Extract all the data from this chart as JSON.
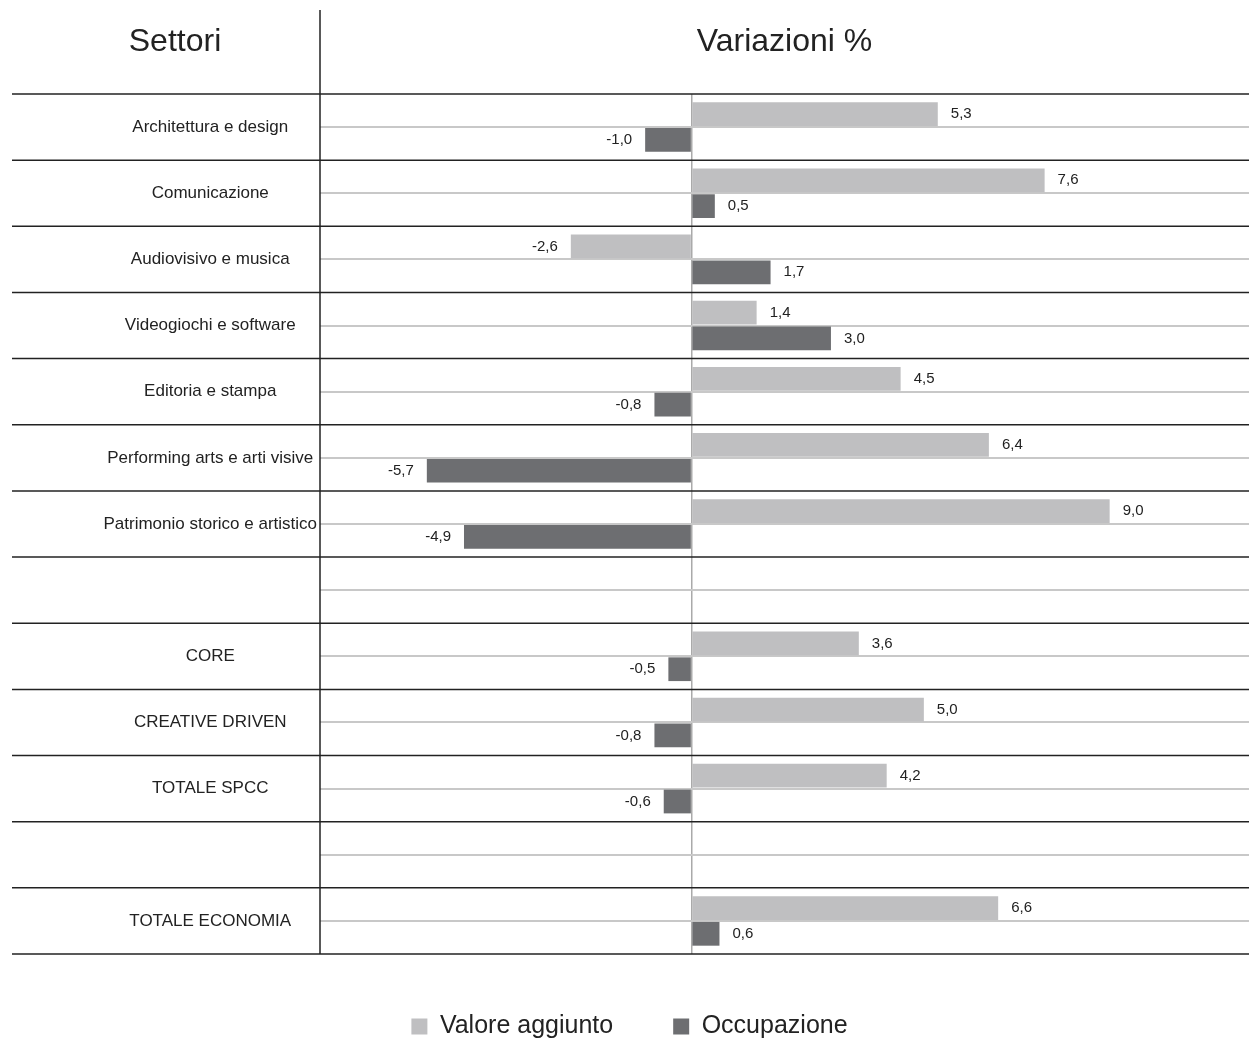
{
  "chart_data": {
    "type": "bar",
    "orientation": "horizontal",
    "title": "Variazioni %",
    "ylabel": "Settori",
    "categories": [
      "Architettura e design",
      "Comunicazione",
      "Audiovisivo e musica",
      "Videogiochi e software",
      "Editoria e stampa",
      "Performing arts e arti visive",
      "Patrimonio storico e artistico",
      null,
      "CORE",
      "CREATIVE DRIVEN",
      "TOTALE SPCC",
      null,
      "TOTALE ECONOMIA"
    ],
    "series": [
      {
        "name": "Valore aggiunto",
        "color": "#bfbfc1",
        "values": [
          5.3,
          7.6,
          -2.6,
          1.4,
          4.5,
          6.4,
          9.0,
          null,
          3.6,
          5.0,
          4.2,
          null,
          6.6
        ],
        "value_labels": [
          "5,3",
          "7,6",
          "-2,6",
          "1,4",
          "4,5",
          "6,4",
          "9,0",
          null,
          "3,6",
          "5,0",
          "4,2",
          null,
          "6,6"
        ]
      },
      {
        "name": "Occupazione",
        "color": "#6d6e71",
        "values": [
          -1.0,
          0.5,
          1.7,
          3.0,
          -0.8,
          -5.7,
          -4.9,
          null,
          -0.5,
          -0.8,
          -0.6,
          null,
          0.6
        ],
        "value_labels": [
          "-1,0",
          "0,5",
          "1,7",
          "3,0",
          "-0,8",
          "-5,7",
          "-4,9",
          null,
          "-0,5",
          "-0,8",
          "-0,6",
          null,
          "0,6"
        ]
      }
    ],
    "grid": "y",
    "legend": "bottom"
  }
}
